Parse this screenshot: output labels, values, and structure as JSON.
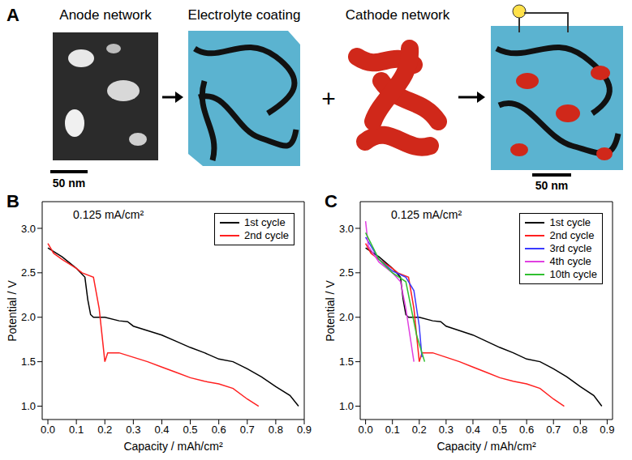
{
  "diagram": {
    "panel": "A",
    "steps": [
      {
        "label": "Anode network"
      },
      {
        "label": "Electrolyte coating"
      },
      {
        "label": "Cathode network"
      }
    ],
    "join_symbol": "+",
    "scale_bars": [
      "50 nm",
      "50 nm"
    ]
  },
  "chart_data": [
    {
      "panel": "B",
      "type": "line",
      "annotation": "0.125 mA/cm²",
      "x_label": "Capacity / mAh/cm²",
      "y_label": "Potential / V",
      "xlim": [
        -0.02,
        0.9
      ],
      "xticks": [
        {
          "value": 0,
          "label": "0.0"
        },
        {
          "value": 0.1,
          "label": "0.1"
        },
        {
          "value": 0.2,
          "label": "0.2"
        },
        {
          "value": 0.3,
          "label": "0.3"
        },
        {
          "value": 0.4,
          "label": "0.4"
        },
        {
          "value": 0.5,
          "label": "0.5"
        },
        {
          "value": 0.6,
          "label": "0.6"
        },
        {
          "value": 0.7,
          "label": "0.7"
        },
        {
          "value": 0.8,
          "label": "0.8"
        },
        {
          "value": 0.9,
          "label": "0.9"
        }
      ],
      "ylim": [
        0.85,
        3.3
      ],
      "yticks": [
        {
          "value": 1,
          "label": "1.0"
        },
        {
          "value": 1.5,
          "label": "1.5"
        },
        {
          "value": 2,
          "label": "2.0"
        },
        {
          "value": 2.5,
          "label": "2.5"
        },
        {
          "value": 3,
          "label": "3.0"
        }
      ],
      "grid": false,
      "legend": "upper right",
      "series": [
        {
          "name": "1st cycle",
          "color": "#000000",
          "x": [
            0,
            0.05,
            0.1,
            0.13,
            0.14,
            0.15,
            0.16,
            0.2,
            0.25,
            0.28,
            0.3,
            0.35,
            0.4,
            0.45,
            0.5,
            0.55,
            0.6,
            0.65,
            0.7,
            0.75,
            0.8,
            0.85,
            0.88
          ],
          "values": [
            2.78,
            2.68,
            2.55,
            2.45,
            2.2,
            2.03,
            2.0,
            2.0,
            1.96,
            1.95,
            1.9,
            1.85,
            1.8,
            1.73,
            1.66,
            1.6,
            1.53,
            1.5,
            1.42,
            1.33,
            1.22,
            1.12,
            1.0
          ]
        },
        {
          "name": "2nd cycle",
          "color": "#ff2020",
          "x": [
            0,
            0.02,
            0.05,
            0.1,
            0.12,
            0.16,
            0.18,
            0.19,
            0.2,
            0.21,
            0.25,
            0.3,
            0.35,
            0.4,
            0.45,
            0.5,
            0.55,
            0.6,
            0.65,
            0.7,
            0.74
          ],
          "values": [
            2.83,
            2.72,
            2.65,
            2.55,
            2.5,
            2.45,
            2.1,
            1.8,
            1.5,
            1.6,
            1.6,
            1.55,
            1.5,
            1.44,
            1.38,
            1.32,
            1.28,
            1.25,
            1.2,
            1.08,
            1.0
          ]
        }
      ]
    },
    {
      "panel": "C",
      "type": "line",
      "annotation": "0.125 mA/cm²",
      "x_label": "Capacity / mAh/cm²",
      "y_label": "Potential / V",
      "xlim": [
        -0.02,
        0.92
      ],
      "xticks": [
        {
          "value": 0,
          "label": "0.0"
        },
        {
          "value": 0.1,
          "label": "0.1"
        },
        {
          "value": 0.2,
          "label": "0.2"
        },
        {
          "value": 0.3,
          "label": "0.3"
        },
        {
          "value": 0.4,
          "label": "0.4"
        },
        {
          "value": 0.5,
          "label": "0.5"
        },
        {
          "value": 0.6,
          "label": "0.6"
        },
        {
          "value": 0.7,
          "label": "0.7"
        },
        {
          "value": 0.8,
          "label": "0.8"
        },
        {
          "value": 0.9,
          "label": "0.9"
        }
      ],
      "ylim": [
        0.85,
        3.3
      ],
      "yticks": [
        {
          "value": 1,
          "label": "1.0"
        },
        {
          "value": 1.5,
          "label": "1.5"
        },
        {
          "value": 2,
          "label": "2.0"
        },
        {
          "value": 2.5,
          "label": "2.5"
        },
        {
          "value": 3,
          "label": "3.0"
        }
      ],
      "grid": false,
      "legend": "upper right",
      "series": [
        {
          "name": "1st cycle",
          "color": "#000000",
          "x": [
            0,
            0.05,
            0.1,
            0.13,
            0.14,
            0.15,
            0.16,
            0.2,
            0.25,
            0.28,
            0.3,
            0.35,
            0.4,
            0.45,
            0.5,
            0.55,
            0.6,
            0.65,
            0.7,
            0.75,
            0.8,
            0.85,
            0.88
          ],
          "values": [
            2.78,
            2.68,
            2.55,
            2.45,
            2.2,
            2.03,
            2.0,
            2.0,
            1.96,
            1.95,
            1.9,
            1.85,
            1.8,
            1.73,
            1.66,
            1.6,
            1.53,
            1.5,
            1.42,
            1.33,
            1.22,
            1.12,
            1.0
          ]
        },
        {
          "name": "2nd cycle",
          "color": "#ff2020",
          "x": [
            0,
            0.02,
            0.05,
            0.1,
            0.12,
            0.16,
            0.18,
            0.19,
            0.2,
            0.21,
            0.25,
            0.3,
            0.35,
            0.4,
            0.45,
            0.5,
            0.55,
            0.6,
            0.65,
            0.7,
            0.74
          ],
          "values": [
            2.83,
            2.72,
            2.65,
            2.55,
            2.5,
            2.45,
            2.1,
            1.8,
            1.5,
            1.6,
            1.6,
            1.55,
            1.5,
            1.44,
            1.38,
            1.32,
            1.28,
            1.25,
            1.2,
            1.08,
            1.0
          ]
        },
        {
          "name": "3rd cycle",
          "color": "#3a3aff",
          "x": [
            0,
            0.05,
            0.1,
            0.15,
            0.18,
            0.2,
            0.21
          ],
          "values": [
            2.9,
            2.65,
            2.52,
            2.45,
            2.3,
            1.9,
            1.55
          ]
        },
        {
          "name": "4th cycle",
          "color": "#e040e0",
          "x": [
            0,
            0.01,
            0.05,
            0.1,
            0.13,
            0.15,
            0.17,
            0.18
          ],
          "values": [
            3.08,
            2.8,
            2.62,
            2.5,
            2.4,
            2.1,
            1.7,
            1.5
          ]
        },
        {
          "name": "10th cycle",
          "color": "#30c030",
          "x": [
            0,
            0.05,
            0.1,
            0.15,
            0.17,
            0.19,
            0.22
          ],
          "values": [
            2.95,
            2.65,
            2.5,
            2.4,
            2.1,
            1.8,
            1.5
          ]
        }
      ]
    }
  ]
}
